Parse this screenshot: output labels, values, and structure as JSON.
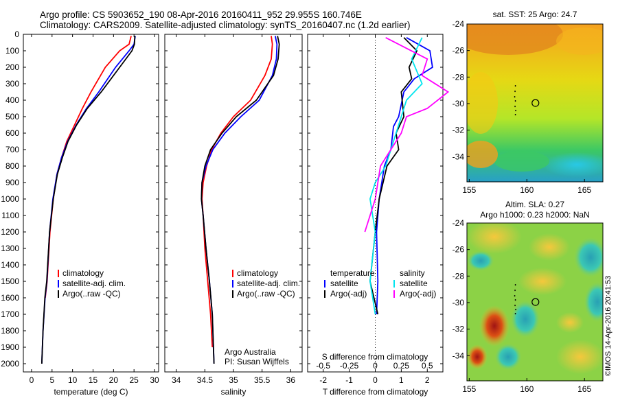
{
  "header": {
    "line1": "Argo profile: CS 5903652_190 08-Apr-2016 20160411_952 29.955S 160.746E",
    "line2": "Climatology: CARS2009. Satellite-adjusted climatology: synTS_20160407.nc (1.2d earlier)"
  },
  "footer": {
    "org": "Argo Australia",
    "pi": "PI: Susan Wijffels",
    "stamp": "©IMOS 14-Apr-2016 20:41:53"
  },
  "colors": {
    "climatology": "#ff0000",
    "satellite": "#0000ff",
    "argo": "#000000",
    "s_satellite": "#00e5ee",
    "s_argo": "#ff00ff"
  },
  "chart_data": [
    {
      "id": "temperature",
      "type": "line",
      "xlabel": "temperature (deg C)",
      "ylabel": "",
      "xlim": [
        -2,
        31
      ],
      "ylim": [
        2050,
        0
      ],
      "xticks": [
        "0",
        "5",
        "10",
        "15",
        "20",
        "25",
        "30"
      ],
      "yticks": [
        "0",
        "100",
        "200",
        "300",
        "400",
        "500",
        "600",
        "700",
        "800",
        "900",
        "1000",
        "1100",
        "1200",
        "1300",
        "1400",
        "1500",
        "1600",
        "1700",
        "1800",
        "1900",
        "2000"
      ],
      "legend": [
        "climatology",
        "satellite-adj. clim.",
        "Argo(..raw -QC)"
      ],
      "series": [
        {
          "name": "climatology",
          "color": "#ff0000",
          "x": [
            24.3,
            23.8,
            21.5,
            18,
            14.5,
            12.4,
            10.5,
            8.6,
            7.3,
            6.2,
            5.3,
            4.5,
            3.8,
            3.35
          ],
          "y": [
            10,
            60,
            100,
            200,
            350,
            450,
            550,
            650,
            750,
            850,
            1000,
            1200,
            1500,
            1600
          ]
        },
        {
          "name": "satellite-adj. clim.",
          "color": "#0000ff",
          "x": [
            25.3,
            25,
            23.8,
            20.5,
            16.4,
            13.4,
            10.9,
            8.8,
            7.3,
            6.2,
            5.2,
            4.4,
            3.75,
            3.3,
            2.8,
            2.5
          ],
          "y": [
            10,
            60,
            100,
            200,
            350,
            450,
            550,
            650,
            750,
            850,
            1000,
            1200,
            1500,
            1600,
            1800,
            2000
          ]
        },
        {
          "name": "Argo(..raw -QC)",
          "color": "#000000",
          "x": [
            25.2,
            25.1,
            24.5,
            21.5,
            17,
            13.6,
            11,
            8.9,
            7.5,
            6.3,
            5.3,
            4.4,
            3.7,
            3.25,
            2.8,
            2.5
          ],
          "y": [
            10,
            60,
            100,
            200,
            350,
            450,
            550,
            650,
            750,
            850,
            1000,
            1200,
            1500,
            1600,
            1800,
            2000
          ]
        }
      ]
    },
    {
      "id": "salinity",
      "type": "line",
      "xlabel": "salinity",
      "xlim": [
        33.8,
        36.2
      ],
      "ylim": [
        2050,
        0
      ],
      "xticks": [
        "34",
        "34.5",
        "35",
        "35.5",
        "36"
      ],
      "legend": [
        "climatology",
        "satellite-adj. clim.",
        "Argo(..raw -QC)"
      ],
      "series": [
        {
          "name": "climatology",
          "color": "#ff0000",
          "x": [
            35.66,
            35.68,
            35.66,
            35.55,
            35.3,
            35.0,
            34.78,
            34.62,
            34.53,
            34.47,
            34.45,
            34.47,
            34.5,
            34.55,
            34.6,
            34.63
          ],
          "y": [
            10,
            60,
            150,
            250,
            400,
            500,
            600,
            700,
            800,
            900,
            1000,
            1100,
            1300,
            1500,
            1700,
            1900
          ]
        },
        {
          "name": "satellite-adj. clim.",
          "color": "#0000ff",
          "x": [
            35.73,
            35.76,
            35.75,
            35.68,
            35.45,
            35.13,
            34.85,
            34.64,
            34.52,
            34.45,
            34.44,
            34.47,
            34.52,
            34.58,
            34.63,
            34.66
          ],
          "y": [
            10,
            60,
            150,
            250,
            400,
            500,
            600,
            700,
            800,
            900,
            1000,
            1100,
            1300,
            1500,
            1700,
            2000
          ]
        },
        {
          "name": "Argo(..raw -QC)",
          "color": "#000000",
          "x": [
            35.77,
            35.8,
            35.78,
            35.7,
            35.4,
            35.05,
            34.8,
            34.6,
            34.5,
            34.45,
            34.44,
            34.47,
            34.52,
            34.58,
            34.63,
            34.66
          ],
          "y": [
            10,
            60,
            150,
            250,
            400,
            500,
            600,
            700,
            800,
            900,
            1000,
            1100,
            1300,
            1500,
            1700,
            2000
          ]
        }
      ]
    },
    {
      "id": "difference",
      "type": "line",
      "xlabel": "T difference from climatology",
      "top_label": "S difference from climatology",
      "xlim": [
        -2.6,
        2.6
      ],
      "ylim": [
        2050,
        0
      ],
      "xticks": [
        "-2",
        "-1",
        "0",
        "1",
        "2"
      ],
      "top_ticks": [
        "-0.5",
        "-0.25",
        "0",
        "0.25",
        "0.5"
      ],
      "legend_titles": [
        "temperature",
        "salinity"
      ],
      "legend": [
        "satellite",
        "Argo(-adj)",
        "satellite",
        "Argo(-adj)"
      ],
      "series": [
        {
          "name": "T satellite",
          "color": "#0000ff",
          "x": [
            1.2,
            2.1,
            2.2,
            1.5,
            1.1,
            0.9,
            0.7,
            0.6,
            0.35,
            0.25,
            0.15,
            0.05,
            0.1,
            0.05
          ],
          "y": [
            20,
            100,
            200,
            270,
            350,
            500,
            560,
            700,
            800,
            900,
            1000,
            1200,
            1500,
            1700
          ]
        },
        {
          "name": "T Argo(-adj)",
          "color": "#000000",
          "x": [
            1.1,
            1.6,
            1.3,
            1.4,
            1.0,
            1.1,
            0.8,
            0.9,
            0.45,
            0.3,
            0.15,
            0.0,
            -0.2,
            0.1
          ],
          "y": [
            20,
            100,
            200,
            270,
            350,
            500,
            600,
            700,
            800,
            900,
            1000,
            1200,
            1500,
            1700
          ]
        },
        {
          "name": "S satellite",
          "color": "#00e5ee",
          "x": [
            0.45,
            0.35,
            0.45,
            0.3,
            0.25,
            0.2,
            0.15,
            0.1,
            0.0,
            -0.05,
            0.0,
            -0.05,
            0.0
          ],
          "y": [
            20,
            150,
            300,
            400,
            500,
            600,
            700,
            800,
            900,
            1000,
            1200,
            1500,
            1700
          ]
        },
        {
          "name": "S Argo(-adj)",
          "color": "#ff00ff",
          "x": [
            0.1,
            0.5,
            0.45,
            0.7,
            0.5,
            0.3,
            0.25,
            0.15,
            0.05,
            0.0,
            -0.1
          ],
          "y": [
            20,
            150,
            250,
            350,
            450,
            500,
            600,
            700,
            800,
            1000,
            1200
          ]
        }
      ]
    },
    {
      "id": "sst_map",
      "type": "heatmap",
      "title": "sat. SST: 25 Argo: 24.7",
      "xticks": [
        "155",
        "160",
        "165"
      ],
      "yticks": [
        "-24",
        "-26",
        "-28",
        "-30",
        "-32",
        "-34"
      ],
      "argo_position": [
        160.746,
        -29.955
      ]
    },
    {
      "id": "sla_map",
      "type": "heatmap",
      "title": "Altim. SLA: 0.27",
      "subtitle": "Argo h1000: 0.23 h2000: NaN",
      "xticks": [
        "155",
        "160",
        "165"
      ],
      "yticks": [
        "-24",
        "-26",
        "-28",
        "-30",
        "-32",
        "-34"
      ],
      "argo_position": [
        160.746,
        -29.955
      ]
    }
  ]
}
